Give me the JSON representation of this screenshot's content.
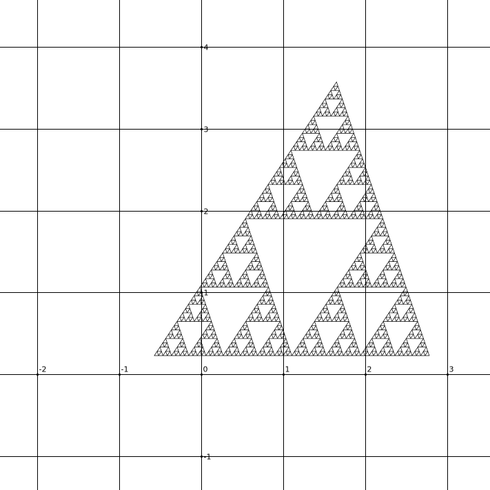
{
  "plot": {
    "x_tick_labels": [
      {
        "value": -2,
        "label": "-2"
      },
      {
        "value": -1,
        "label": "-1"
      },
      {
        "value": 0,
        "label": "0"
      },
      {
        "value": 1,
        "label": "1"
      },
      {
        "value": 2,
        "label": "2"
      },
      {
        "value": 3,
        "label": "3"
      }
    ],
    "y_tick_labels": [
      {
        "value": 4,
        "label": "4"
      },
      {
        "value": 3,
        "label": "3"
      },
      {
        "value": 2,
        "label": "2"
      },
      {
        "value": 1,
        "label": "1"
      },
      {
        "value": -1,
        "label": "-1"
      }
    ],
    "x_range": [
      -2.45,
      3.52
    ],
    "y_range": [
      -1.41,
      4.57
    ],
    "grid": true,
    "line_color": "#000000",
    "background_color": "#ffffff"
  },
  "figure": {
    "shape": "sierpinski-triangle",
    "vertices": [
      [
        -0.57,
        0.23
      ],
      [
        2.78,
        0.23
      ],
      [
        1.65,
        3.57
      ]
    ],
    "depth": 6
  }
}
